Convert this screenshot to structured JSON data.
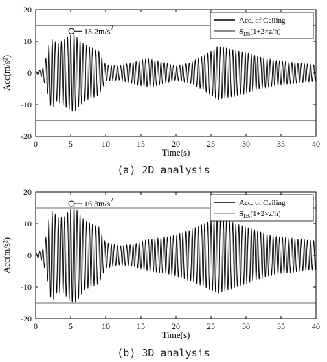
{
  "captions": [
    "(a) 2D analysis",
    "(b) 3D analysis"
  ],
  "chart_data": [
    {
      "type": "line",
      "title": "",
      "xlabel": "Time(s)",
      "ylabel": "Acc(m/s²)",
      "xlim": [
        0,
        40
      ],
      "ylim": [
        -20,
        20
      ],
      "x_ticks": [
        0,
        5,
        10,
        15,
        20,
        25,
        30,
        35,
        40
      ],
      "y_ticks": [
        -20,
        -10,
        0,
        10,
        20
      ],
      "grid": false,
      "legend_position": "top-right",
      "series": [
        {
          "name": "Acc. of Ceiling",
          "color": "#000000",
          "frequency_hz": 2.25,
          "envelope": {
            "t": [
              0,
              1,
              1.5,
              2,
              2.5,
              3,
              4,
              5,
              5.5,
              6,
              7,
              8,
              9,
              10,
              12,
              14,
              16,
              18,
              20,
              22,
              24,
              25,
              26,
              27,
              28,
              30,
              32,
              34,
              36,
              38,
              40
            ],
            "amplitude": [
              0.3,
              1.5,
              5,
              10,
              11,
              9,
              10.5,
              12,
              12.5,
              11,
              9,
              8,
              7,
              2.5,
              2.2,
              3.5,
              4.5,
              3.5,
              2.2,
              3.2,
              5.5,
              7,
              8.5,
              8,
              7.5,
              6.5,
              5,
              4,
              3.5,
              3,
              2.5
            ]
          }
        },
        {
          "name": "S_DS(1+2×z/h)",
          "color": "#8c8c8c",
          "levels": [
            15,
            -15
          ]
        }
      ],
      "legend": [
        "Acc. of Ceiling",
        "S",
        "DS",
        "(1+2×z/h)"
      ],
      "annotation": {
        "text": "13.2m/s",
        "superscript": "2",
        "x": 5.1,
        "y": 13.2
      }
    },
    {
      "type": "line",
      "title": "",
      "xlabel": "Time(s)",
      "ylabel": "Acc(m/s²)",
      "xlim": [
        0,
        40
      ],
      "ylim": [
        -20,
        20
      ],
      "x_ticks": [
        0,
        5,
        10,
        15,
        20,
        25,
        30,
        35,
        40
      ],
      "y_ticks": [
        -20,
        -10,
        0,
        10,
        20
      ],
      "grid": false,
      "legend_position": "top-right",
      "series": [
        {
          "name": "Acc. of Ceiling",
          "color": "#000000",
          "frequency_hz": 2.25,
          "envelope": {
            "t": [
              0,
              1,
              1.5,
              2,
              2.5,
              3,
              4,
              5,
              5.5,
              6,
              7,
              8,
              9,
              10,
              12,
              14,
              16,
              18,
              20,
              22,
              24,
              25,
              26,
              27,
              28,
              30,
              32,
              34,
              36,
              38,
              40
            ],
            "amplitude": [
              0.3,
              2,
              6,
              13,
              14.5,
              12,
              12,
              15,
              16,
              14,
              11,
              10,
              9,
              4,
              3,
              3.5,
              5,
              5.5,
              6.5,
              8,
              10,
              11,
              12,
              11.5,
              10.5,
              9,
              7.5,
              6,
              5.5,
              5,
              4.5
            ]
          }
        },
        {
          "name": "S_DS(1+2×z/h)",
          "color": "#b4b4b4",
          "levels": [
            15,
            -15
          ]
        }
      ],
      "legend": [
        "Acc. of Ceiling",
        "S",
        "DS",
        "(1+2×z/h)"
      ],
      "annotation": {
        "text": "16.3m/s",
        "superscript": "2",
        "x": 5.1,
        "y": 16.3
      }
    }
  ]
}
